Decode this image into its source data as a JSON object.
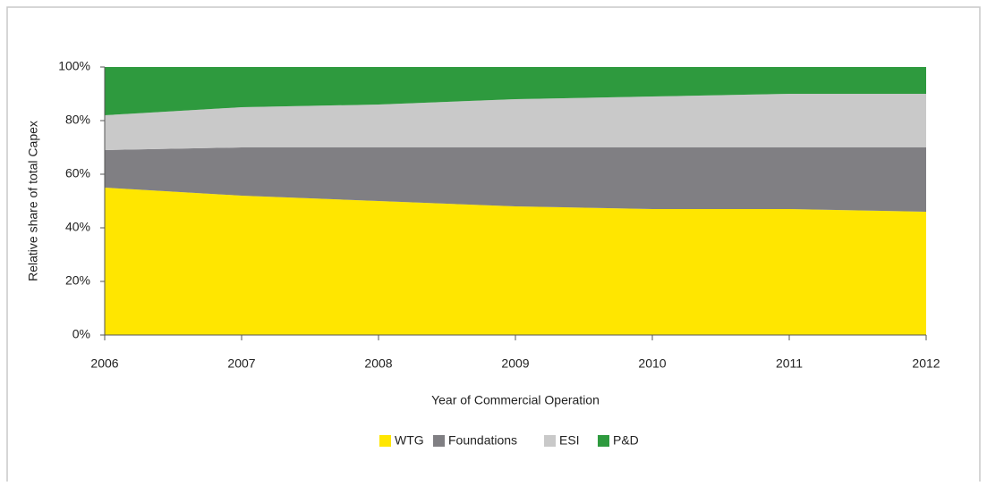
{
  "chart_data": {
    "type": "stacked_area",
    "x_label": "Year of Commercial Operation",
    "y_label": "Relative share of total Capex",
    "x": [
      2006,
      2007,
      2008,
      2009,
      2010,
      2011,
      2012
    ],
    "xlim": [
      2006,
      2012
    ],
    "xticks": [
      2006,
      2007,
      2008,
      2009,
      2010,
      2011,
      2012
    ],
    "ylim": [
      0,
      100
    ],
    "yticks": [
      {
        "value": 0,
        "label": "0%"
      },
      {
        "value": 20,
        "label": "20%"
      },
      {
        "value": 40,
        "label": "40%"
      },
      {
        "value": 60,
        "label": "60%"
      },
      {
        "value": 80,
        "label": "80%"
      },
      {
        "value": 100,
        "label": "100%"
      }
    ],
    "grid": false,
    "legend": "bottom",
    "series": [
      {
        "name": "WTG",
        "color": "#ffe600",
        "values": [
          55,
          52,
          50,
          48,
          47,
          47,
          46
        ]
      },
      {
        "name": "Foundations",
        "color": "#807f83",
        "values": [
          14,
          18,
          20,
          22,
          23,
          23,
          24
        ]
      },
      {
        "name": "ESI",
        "color": "#c9c9c9",
        "values": [
          13,
          15,
          16,
          18,
          19,
          20,
          20
        ]
      },
      {
        "name": "P&D",
        "color": "#2e9a3e",
        "values": [
          18,
          15,
          14,
          12,
          11,
          10,
          10
        ]
      }
    ]
  }
}
